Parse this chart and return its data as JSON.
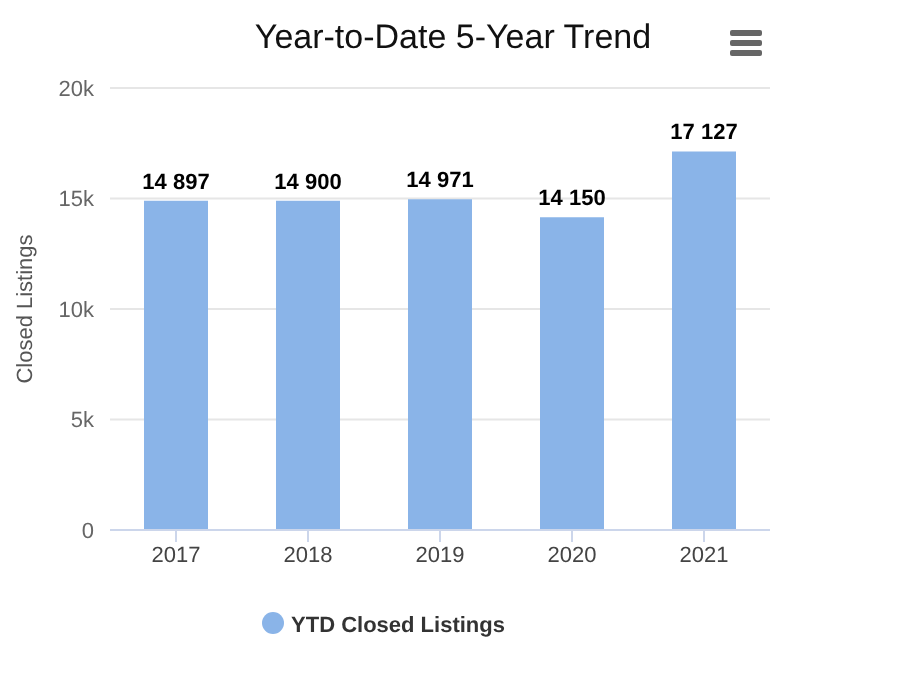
{
  "chart_data": {
    "type": "bar",
    "title": "Year-to-Date 5-Year Trend",
    "ylabel": "Closed Listings",
    "categories": [
      "2017",
      "2018",
      "2019",
      "2020",
      "2021"
    ],
    "series": [
      {
        "name": "YTD Closed Listings",
        "color": "#8ab4e8",
        "values": [
          14897,
          14900,
          14971,
          14150,
          17127
        ],
        "value_labels": [
          "14 897",
          "14 900",
          "14 971",
          "14 150",
          "17 127"
        ]
      }
    ],
    "ylim": [
      0,
      20000
    ],
    "yticks": [
      {
        "value": 0,
        "label": "0"
      },
      {
        "value": 5000,
        "label": "5k"
      },
      {
        "value": 10000,
        "label": "10k"
      },
      {
        "value": 15000,
        "label": "15k"
      },
      {
        "value": 20000,
        "label": "20k"
      }
    ],
    "grid": "y",
    "legend": "bottom"
  }
}
